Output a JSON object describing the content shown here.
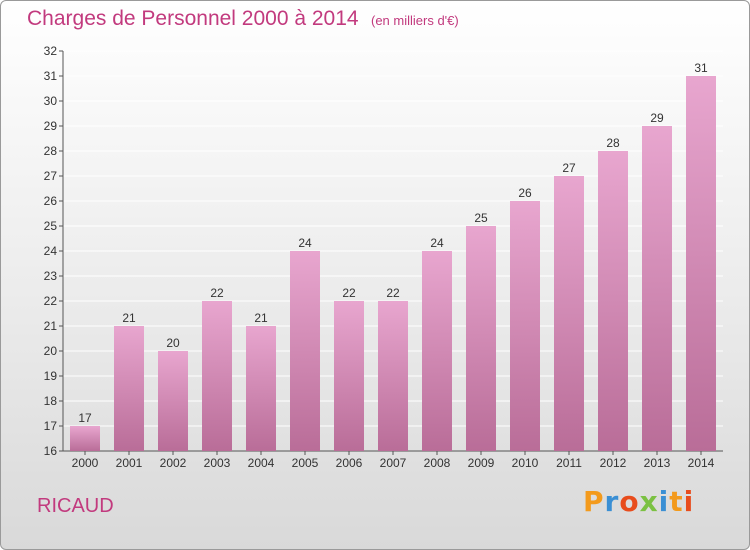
{
  "header": {
    "title": "Charges de Personnel 2000 à 2014",
    "subtitle": "(en milliers d'€)"
  },
  "footer": {
    "commune": "RICAUD",
    "brand": "Proxiti",
    "brand_colors": [
      "#f39a1c",
      "#3a8fd4",
      "#e84c1c",
      "#7bc142",
      "#3a8fd4",
      "#f39a1c",
      "#e84c1c"
    ]
  },
  "colors": {
    "accent": "#c23a7e",
    "bar_top": "#e8a6cf",
    "bar_bottom": "#b96d98",
    "grid": "#ffffff"
  },
  "chart_data": {
    "type": "bar",
    "title": "Charges de Personnel 2000 à 2014",
    "categories": [
      "2000",
      "2001",
      "2002",
      "2003",
      "2004",
      "2005",
      "2006",
      "2007",
      "2008",
      "2009",
      "2010",
      "2011",
      "2012",
      "2013",
      "2014"
    ],
    "values": [
      17,
      21,
      20,
      22,
      21,
      24,
      22,
      22,
      24,
      25,
      26,
      27,
      28,
      29,
      31
    ],
    "ylim": [
      16,
      32
    ],
    "yticks": [
      16,
      17,
      18,
      19,
      20,
      21,
      22,
      23,
      24,
      25,
      26,
      27,
      28,
      29,
      30,
      31,
      32
    ],
    "grid": true,
    "data_labels": true
  }
}
